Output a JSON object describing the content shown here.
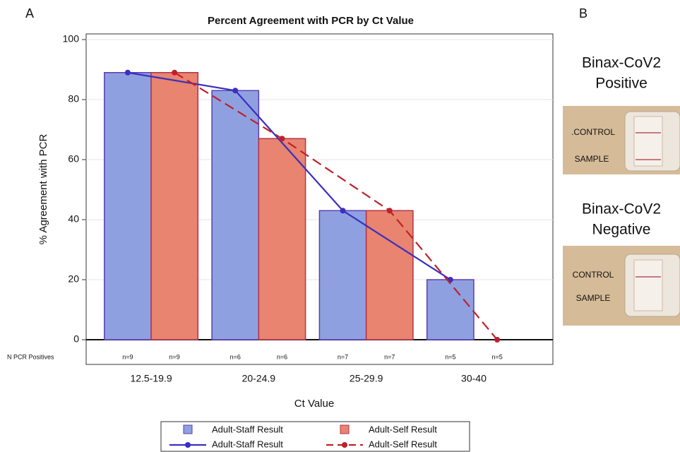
{
  "chart_data": {
    "type": "bar",
    "panel_label": "A",
    "title": "Percent Agreement with PCR by Ct Value",
    "xlabel": "Ct Value",
    "ylabel": "% Agreement with PCR",
    "categories": [
      "12.5-19.9",
      "20-24.9",
      "25-29.9",
      "30-40"
    ],
    "n_row_label": "N  PCR  Positives",
    "series": [
      {
        "name": "Adult-Staff Result",
        "color": "#8fa0e0",
        "edge_color": "#5b3db5",
        "line_color": "#3a2fc0",
        "line_style": "solid",
        "values": [
          89,
          83,
          43,
          20
        ],
        "n_labels": [
          "n=9",
          "n=6",
          "n=7",
          "n=5"
        ]
      },
      {
        "name": "Adult-Self Result",
        "color": "#e8846f",
        "edge_color": "#b3324a",
        "line_color": "#c0202a",
        "line_style": "dashed",
        "values": [
          89,
          67,
          43,
          0
        ],
        "n_labels": [
          "n=9",
          "n=6",
          "n=7",
          "n=5"
        ]
      }
    ],
    "ylim": [
      0,
      100
    ],
    "yticks": [
      0,
      20,
      40,
      60,
      80,
      100
    ],
    "grid": true,
    "legend": "bottom"
  },
  "panel_b": {
    "label": "B",
    "positive": {
      "title": [
        "Binax-CoV2",
        "Positive"
      ],
      "control": ".CONTROL",
      "sample": "SAMPLE"
    },
    "negative": {
      "title": [
        "Binax-CoV2",
        "Negative"
      ],
      "control": "CONTROL",
      "sample": "SAMPLE"
    }
  }
}
